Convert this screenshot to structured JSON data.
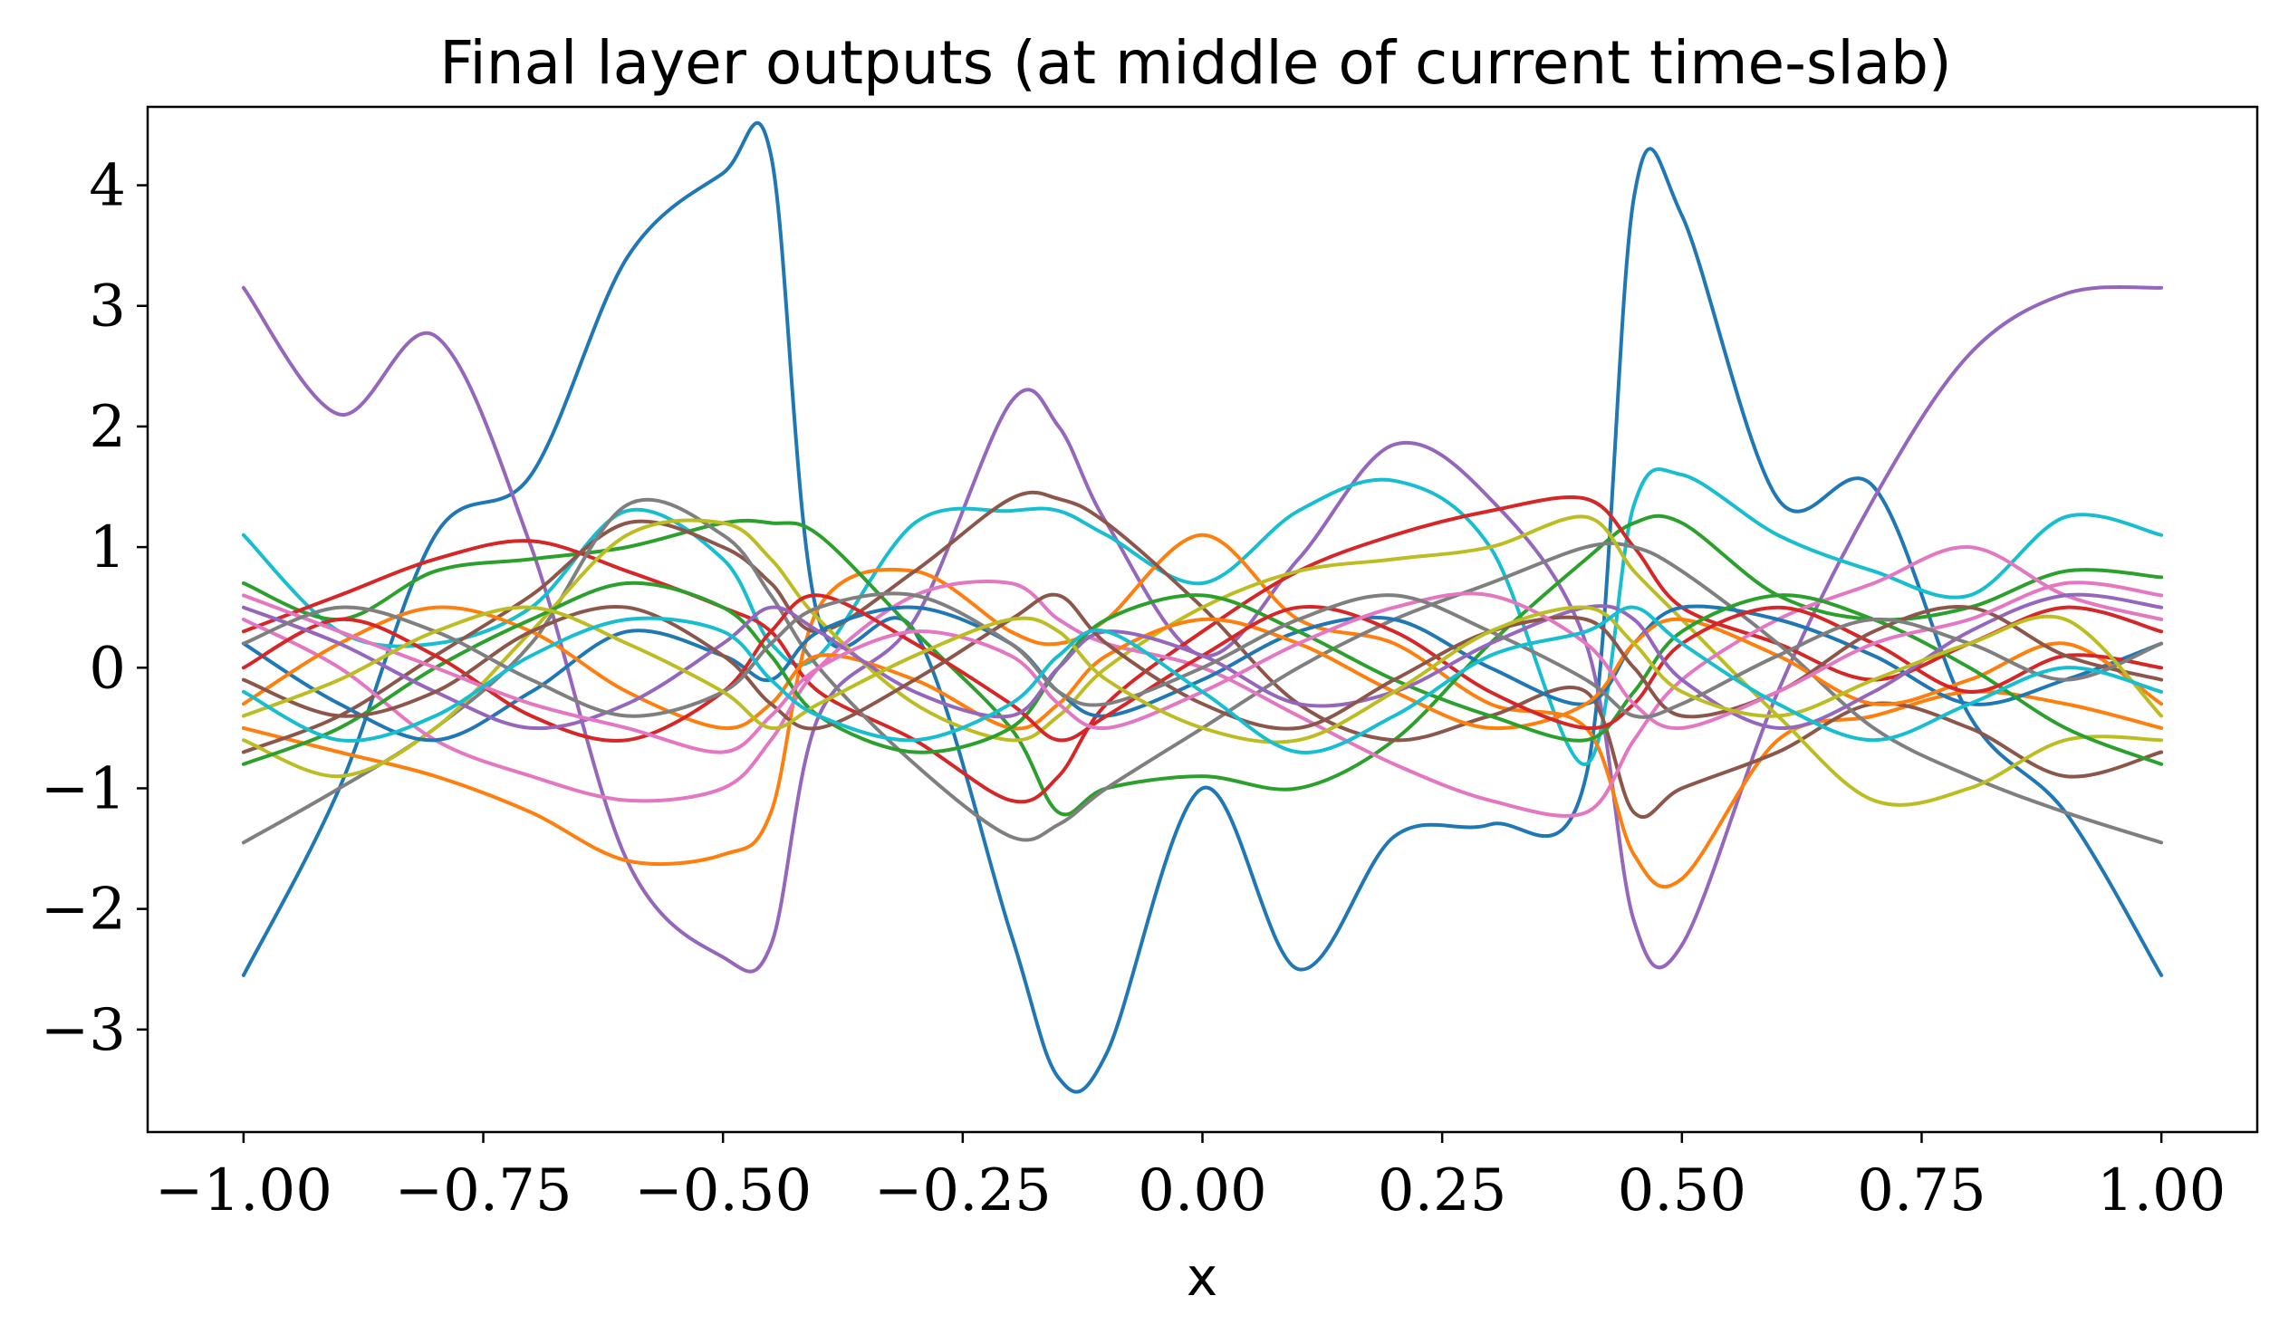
{
  "chart_data": {
    "type": "line",
    "title": "Final layer outputs (at middle of current time-slab)",
    "xlabel": "x",
    "ylabel": "",
    "xlim": [
      -1.1,
      1.1
    ],
    "ylim": [
      -3.85,
      4.65
    ],
    "xticks": [
      -1.0,
      -0.75,
      -0.5,
      -0.25,
      0.0,
      0.25,
      0.5,
      0.75,
      1.0
    ],
    "xtick_labels": [
      "−1.00",
      "−0.75",
      "−0.50",
      "−0.25",
      "0.00",
      "0.25",
      "0.50",
      "0.75",
      "1.00"
    ],
    "yticks": [
      -3,
      -2,
      -1,
      0,
      1,
      2,
      3,
      4
    ],
    "ytick_labels": [
      "−3",
      "−2",
      "−1",
      "0",
      "1",
      "2",
      "3",
      "4"
    ],
    "grid": false,
    "legend": "none",
    "x": [
      -1.0,
      -0.9,
      -0.8,
      -0.7,
      -0.6,
      -0.5,
      -0.45,
      -0.4,
      -0.3,
      -0.2,
      -0.15,
      -0.1,
      0.0,
      0.1,
      0.2,
      0.3,
      0.4,
      0.45,
      0.5,
      0.6,
      0.7,
      0.8,
      0.9,
      1.0
    ],
    "series": [
      {
        "color": "#1f77b4",
        "values": [
          -2.55,
          -1.0,
          1.1,
          1.6,
          3.4,
          4.1,
          4.25,
          0.4,
          0.3,
          -2.2,
          -3.4,
          -3.2,
          -1.0,
          -2.5,
          -1.4,
          -1.3,
          -0.9,
          3.9,
          3.75,
          1.4,
          1.5,
          -0.4,
          -1.2,
          -2.55
        ]
      },
      {
        "color": "#9467bd",
        "values": [
          3.15,
          2.1,
          2.75,
          1.0,
          -1.6,
          -2.4,
          -2.3,
          -0.4,
          0.4,
          2.2,
          2.0,
          1.2,
          0.1,
          0.9,
          1.85,
          1.4,
          0.2,
          -2.1,
          -2.3,
          -0.2,
          1.4,
          2.6,
          3.1,
          3.15
        ]
      },
      {
        "color": "#17becf",
        "values": [
          1.1,
          0.3,
          0.2,
          0.5,
          1.3,
          0.9,
          0.2,
          0.1,
          1.2,
          1.3,
          1.3,
          1.1,
          0.7,
          1.3,
          1.55,
          1.0,
          -0.8,
          1.35,
          1.6,
          1.1,
          0.8,
          0.6,
          1.25,
          1.1
        ]
      },
      {
        "color": "#ff7f0e",
        "values": [
          -0.5,
          -0.7,
          -0.9,
          -1.2,
          -1.6,
          -1.55,
          -1.2,
          0.5,
          0.8,
          0.3,
          0.2,
          0.4,
          1.1,
          0.4,
          0.2,
          -0.3,
          -0.5,
          -1.55,
          -1.75,
          -0.6,
          -0.4,
          -0.2,
          -0.3,
          -0.5
        ]
      },
      {
        "color": "#2ca02c",
        "values": [
          0.7,
          0.4,
          0.8,
          0.9,
          1.0,
          1.2,
          1.2,
          1.1,
          0.3,
          -0.5,
          -1.2,
          -1.0,
          -0.9,
          -1.0,
          -0.6,
          0.2,
          0.9,
          1.2,
          1.2,
          0.6,
          0.4,
          0.5,
          0.8,
          0.75
        ]
      },
      {
        "color": "#d62728",
        "values": [
          0.3,
          0.6,
          0.9,
          1.05,
          0.8,
          0.5,
          0.3,
          -0.2,
          -0.6,
          -1.1,
          -0.9,
          -0.3,
          0.3,
          0.8,
          1.1,
          1.3,
          1.4,
          1.0,
          0.5,
          0.2,
          -0.1,
          0.2,
          0.5,
          0.3
        ]
      },
      {
        "color": "#8c564b",
        "values": [
          -0.7,
          -0.4,
          0.1,
          0.6,
          1.2,
          1.0,
          0.7,
          0.3,
          0.8,
          1.4,
          1.4,
          1.2,
          0.5,
          -0.3,
          -0.6,
          -0.4,
          -0.2,
          -1.2,
          -1.0,
          -0.7,
          -0.3,
          -0.5,
          -0.9,
          -0.7
        ]
      },
      {
        "color": "#7f7f7f",
        "values": [
          -1.45,
          -1.0,
          -0.5,
          0.2,
          1.35,
          1.1,
          0.6,
          0.0,
          -0.8,
          -1.4,
          -1.3,
          -1.0,
          -0.5,
          0.0,
          0.4,
          0.7,
          1.0,
          1.0,
          0.8,
          0.2,
          -0.5,
          -0.9,
          -1.2,
          -1.45
        ]
      },
      {
        "color": "#bcbd22",
        "values": [
          -0.6,
          -0.9,
          -0.5,
          0.3,
          1.1,
          1.2,
          0.9,
          0.4,
          -0.3,
          -0.6,
          -0.4,
          0.0,
          0.5,
          0.8,
          0.9,
          1.0,
          1.25,
          0.8,
          0.4,
          -0.4,
          -1.1,
          -1.0,
          -0.6,
          -0.6
        ]
      },
      {
        "color": "#e377c2",
        "values": [
          0.4,
          0.0,
          -0.6,
          -0.9,
          -1.1,
          -1.0,
          -0.6,
          0.0,
          0.6,
          0.7,
          0.4,
          0.2,
          0.0,
          -0.4,
          -0.8,
          -1.1,
          -1.2,
          -0.6,
          -0.1,
          0.4,
          0.7,
          1.0,
          0.6,
          0.4
        ]
      },
      {
        "color": "#1f77b4",
        "values": [
          0.2,
          -0.3,
          -0.6,
          -0.2,
          0.3,
          0.1,
          -0.1,
          0.3,
          0.5,
          0.2,
          -0.2,
          -0.4,
          -0.1,
          0.3,
          0.4,
          0.0,
          -0.3,
          0.2,
          0.5,
          0.4,
          0.1,
          -0.3,
          -0.1,
          0.2
        ]
      },
      {
        "color": "#ff7f0e",
        "values": [
          -0.3,
          0.2,
          0.5,
          0.3,
          -0.2,
          -0.5,
          -0.3,
          0.1,
          -0.1,
          -0.5,
          -0.3,
          0.1,
          0.4,
          0.2,
          -0.2,
          -0.5,
          -0.3,
          0.2,
          0.4,
          0.1,
          -0.3,
          -0.1,
          0.2,
          -0.3
        ]
      },
      {
        "color": "#2ca02c",
        "values": [
          -0.8,
          -0.5,
          0.0,
          0.4,
          0.7,
          0.5,
          0.1,
          -0.4,
          -0.7,
          -0.5,
          0.0,
          0.4,
          0.6,
          0.3,
          -0.1,
          -0.4,
          -0.6,
          -0.2,
          0.3,
          0.6,
          0.4,
          0.0,
          -0.5,
          -0.8
        ]
      },
      {
        "color": "#d62728",
        "values": [
          0.0,
          0.4,
          0.1,
          -0.4,
          -0.6,
          -0.2,
          0.3,
          0.6,
          0.2,
          -0.3,
          -0.6,
          -0.4,
          0.1,
          0.5,
          0.3,
          -0.2,
          -0.5,
          -0.3,
          0.2,
          0.5,
          0.2,
          -0.2,
          0.1,
          0.0
        ]
      },
      {
        "color": "#9467bd",
        "values": [
          0.5,
          0.2,
          -0.2,
          -0.5,
          -0.3,
          0.2,
          0.5,
          0.3,
          -0.2,
          -0.4,
          0.0,
          0.3,
          0.1,
          -0.3,
          -0.2,
          0.2,
          0.5,
          0.4,
          -0.1,
          -0.5,
          -0.2,
          0.3,
          0.6,
          0.5
        ]
      },
      {
        "color": "#8c564b",
        "values": [
          -0.1,
          -0.4,
          -0.2,
          0.3,
          0.5,
          0.1,
          -0.3,
          -0.5,
          -0.1,
          0.4,
          0.6,
          0.2,
          -0.3,
          -0.5,
          -0.1,
          0.3,
          0.4,
          0.0,
          -0.4,
          -0.2,
          0.3,
          0.5,
          0.1,
          -0.1
        ]
      },
      {
        "color": "#e377c2",
        "values": [
          0.6,
          0.3,
          0.0,
          -0.3,
          -0.5,
          -0.7,
          -0.4,
          0.0,
          0.3,
          0.1,
          -0.3,
          -0.5,
          -0.2,
          0.2,
          0.5,
          0.6,
          0.2,
          -0.3,
          -0.5,
          -0.2,
          0.2,
          0.4,
          0.7,
          0.6
        ]
      },
      {
        "color": "#7f7f7f",
        "values": [
          0.2,
          0.5,
          0.3,
          -0.1,
          -0.4,
          -0.2,
          0.2,
          0.5,
          0.6,
          0.2,
          -0.2,
          -0.3,
          0.0,
          0.4,
          0.6,
          0.3,
          -0.1,
          -0.4,
          -0.3,
          0.1,
          0.4,
          0.2,
          -0.1,
          0.2
        ]
      },
      {
        "color": "#bcbd22",
        "values": [
          -0.4,
          -0.1,
          0.3,
          0.5,
          0.2,
          -0.2,
          -0.5,
          -0.3,
          0.1,
          0.4,
          0.3,
          -0.1,
          -0.5,
          -0.6,
          -0.2,
          0.3,
          0.5,
          0.2,
          -0.2,
          -0.4,
          -0.1,
          0.2,
          0.4,
          -0.4
        ]
      },
      {
        "color": "#17becf",
        "values": [
          -0.2,
          -0.6,
          -0.4,
          0.1,
          0.4,
          0.3,
          -0.1,
          -0.4,
          -0.6,
          -0.3,
          0.1,
          0.3,
          -0.2,
          -0.7,
          -0.4,
          0.1,
          0.3,
          0.5,
          0.2,
          -0.3,
          -0.6,
          -0.3,
          0.0,
          -0.2
        ]
      }
    ]
  }
}
